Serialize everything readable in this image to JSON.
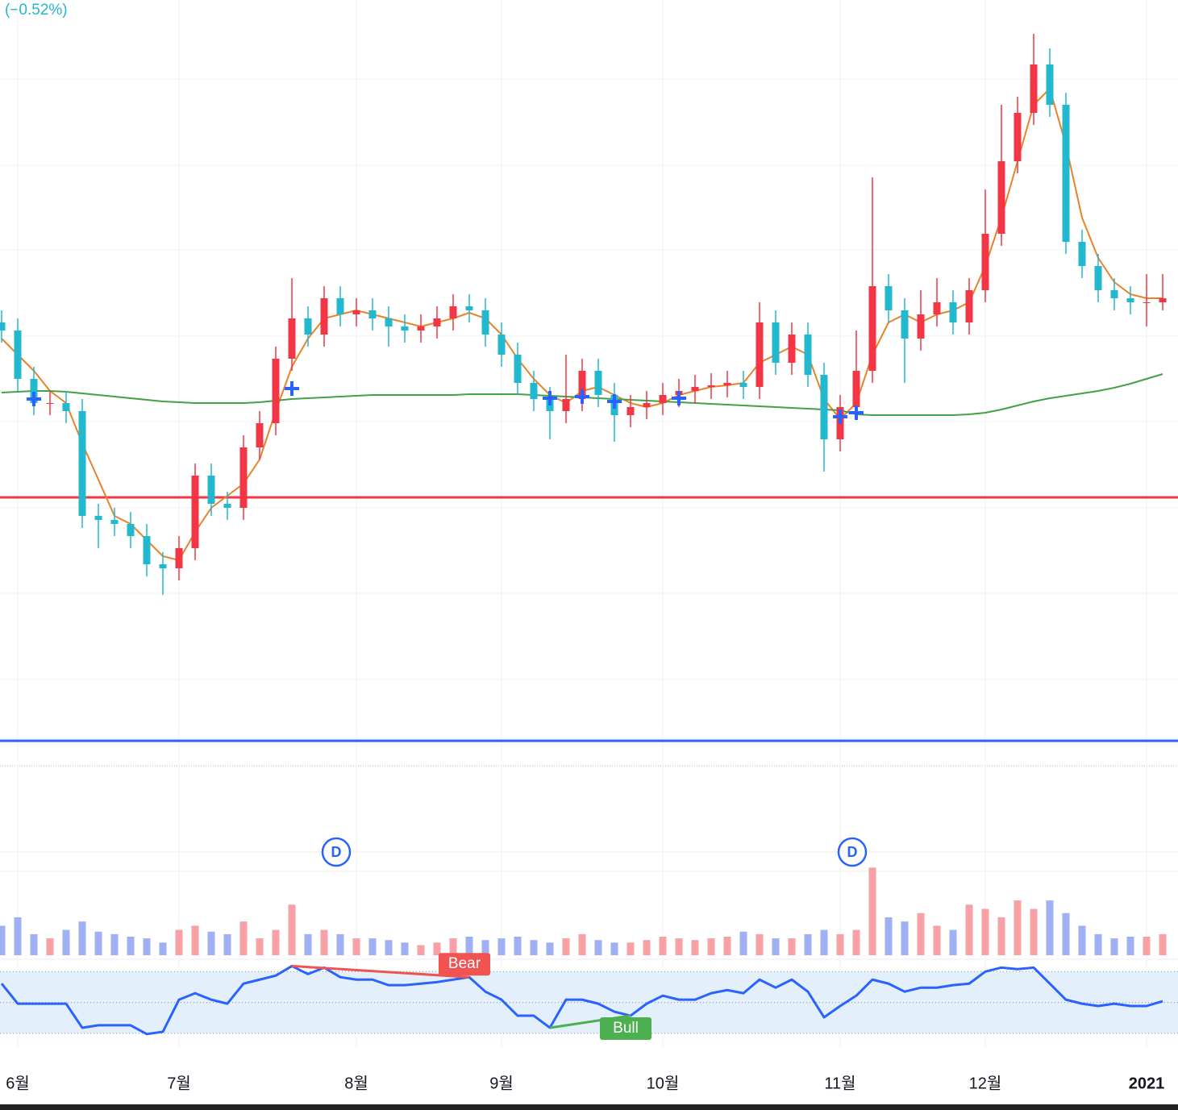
{
  "chart_data": {
    "type": "candlestick",
    "change_label": "(−0.52%)",
    "categories": [
      null,
      "6월",
      null,
      null,
      null,
      null,
      null,
      null,
      null,
      null,
      null,
      "7월",
      null,
      null,
      null,
      null,
      null,
      null,
      null,
      null,
      null,
      null,
      "8월",
      null,
      null,
      null,
      null,
      null,
      null,
      null,
      null,
      "9월",
      null,
      null,
      null,
      null,
      null,
      null,
      null,
      null,
      null,
      "10월",
      null,
      null,
      null,
      null,
      null,
      null,
      null,
      null,
      null,
      null,
      "11월",
      null,
      null,
      null,
      null,
      null,
      null,
      null,
      null,
      "12월",
      null,
      null,
      null,
      null,
      null,
      null,
      null,
      null,
      null,
      "2021",
      null
    ],
    "open": [
      52,
      51,
      45,
      42,
      42,
      41,
      28,
      27.5,
      27,
      25.5,
      22,
      21.5,
      24,
      33,
      29.5,
      29,
      36.5,
      39.5,
      47.5,
      52.5,
      50.5,
      55,
      53,
      53.5,
      52.5,
      51.5,
      51,
      51.5,
      52.5,
      54,
      53.5,
      50.5,
      48,
      44.5,
      42.5,
      41,
      42.5,
      46,
      43,
      40.5,
      41.5,
      42,
      43,
      43.5,
      44,
      44.2,
      44.5,
      44,
      52,
      47,
      50.5,
      45.5,
      37.5,
      41.5,
      46,
      56.5,
      53.5,
      50,
      53,
      54.5,
      52,
      56,
      63,
      72,
      78,
      84,
      79,
      62,
      59,
      56,
      55,
      54.5,
      54.5
    ],
    "high": [
      53.5,
      52.5,
      46.5,
      43.5,
      43.5,
      42.5,
      29.5,
      29,
      28.5,
      27,
      23.5,
      25.5,
      34.5,
      34.5,
      31,
      38,
      41,
      49,
      57.5,
      54,
      56.5,
      56.5,
      55,
      55,
      54,
      53,
      53,
      54,
      55.5,
      55.5,
      55,
      52,
      49.5,
      46,
      44,
      48,
      47.5,
      47.5,
      44.5,
      43,
      43.5,
      44.5,
      45,
      45.5,
      45.7,
      46,
      46,
      54.5,
      53.5,
      52,
      52,
      47,
      43,
      51,
      70,
      58,
      55,
      56,
      57.5,
      56,
      57.5,
      68.5,
      79,
      80,
      87.8,
      86,
      80.5,
      63.5,
      60.5,
      57.5,
      56.5,
      58,
      58
    ],
    "low": [
      49.5,
      43.5,
      40.5,
      40.5,
      39.5,
      26.5,
      24,
      25.5,
      24,
      20.5,
      18.2,
      20,
      22.5,
      28,
      27.5,
      27.5,
      35,
      38,
      46,
      49,
      49,
      51.5,
      51.5,
      51,
      49,
      49.5,
      49.5,
      50,
      51,
      52,
      49,
      46.5,
      43,
      41,
      37.5,
      39.5,
      41,
      41.5,
      37.2,
      39,
      40,
      40.5,
      41.5,
      42,
      42.5,
      42.7,
      42.5,
      42.5,
      45.5,
      45.5,
      44,
      33.5,
      36,
      40,
      44.5,
      52,
      44.5,
      48.5,
      51.5,
      50.5,
      50.5,
      54.5,
      61.5,
      70.5,
      76.5,
      77.5,
      60.5,
      57.5,
      54.5,
      53.5,
      53,
      51.5,
      53.5
    ],
    "close": [
      51,
      45,
      42,
      42,
      41,
      28,
      27.5,
      27,
      25.5,
      22,
      21.5,
      24,
      33,
      29.5,
      29,
      36.5,
      39.5,
      47.5,
      52.5,
      50.5,
      55,
      53,
      53.5,
      52.5,
      51.5,
      51,
      51.5,
      52.5,
      54,
      53.5,
      50.5,
      48,
      44.5,
      42.5,
      41,
      42.5,
      46,
      43,
      40.5,
      41.5,
      42,
      43,
      43.5,
      44,
      44.2,
      44.5,
      44,
      52,
      47,
      50.5,
      45.5,
      37.5,
      41.5,
      46,
      56.5,
      53.5,
      50,
      53,
      54.5,
      52,
      56,
      63,
      72,
      78,
      84,
      79,
      62,
      59,
      56,
      55,
      54.5,
      54.5,
      55
    ],
    "up_color": "#f23645",
    "down_color": "#22b8cf",
    "ylim": [
      -13,
      92
    ],
    "ygrid": [
      82.2,
      71.5,
      61,
      50.3,
      39.7,
      29,
      18.4,
      7.7
    ],
    "ma_lines": [
      {
        "color": "#e8832a",
        "values": [
          50,
          48,
          46,
          43.5,
          42,
          37,
          32.5,
          28,
          27,
          25,
          23,
          22.5,
          26,
          29,
          30.5,
          32,
          35,
          41,
          46.5,
          50,
          52.5,
          53,
          53.5,
          53,
          52.5,
          52,
          51.5,
          52,
          52.5,
          53.2,
          52.5,
          50.5,
          47.5,
          45,
          43,
          42,
          43.5,
          44,
          43,
          42,
          41.5,
          42,
          43,
          43.5,
          44,
          44.2,
          44.5,
          47,
          48,
          49,
          48,
          42.5,
          40,
          42,
          48,
          52,
          53,
          52,
          53,
          53.5,
          54.5,
          59,
          65,
          72,
          79,
          81,
          74,
          65,
          60,
          57,
          55.5,
          55,
          55
        ]
      },
      {
        "color": "#43a047",
        "values": [
          43.3,
          43.4,
          43.5,
          43.5,
          43.4,
          43.2,
          43,
          42.8,
          42.6,
          42.4,
          42.2,
          42.1,
          42,
          42,
          42,
          42,
          42.1,
          42.3,
          42.5,
          42.6,
          42.7,
          42.8,
          42.9,
          43,
          43,
          43,
          43,
          43,
          43,
          43.1,
          43.1,
          43.1,
          43.1,
          43,
          42.9,
          42.8,
          42.7,
          42.6,
          42.5,
          42.4,
          42.3,
          42.2,
          42.1,
          42,
          41.9,
          41.8,
          41.7,
          41.6,
          41.5,
          41.4,
          41.3,
          41.2,
          41.1,
          40.6,
          40.5,
          40.5,
          40.5,
          40.5,
          40.5,
          40.5,
          40.6,
          40.8,
          41.2,
          41.7,
          42.2,
          42.6,
          42.9,
          43.2,
          43.5,
          43.9,
          44.4,
          45,
          45.6
        ]
      }
    ],
    "hlines": [
      {
        "value": 30.3,
        "color": "#f23645"
      },
      {
        "value": 0.1,
        "color": "#2962ff"
      }
    ],
    "cross_markers": {
      "color": "#2962ff",
      "values": [
        null,
        null,
        42.5,
        null,
        null,
        null,
        null,
        null,
        null,
        null,
        null,
        null,
        null,
        null,
        null,
        null,
        null,
        null,
        43.8,
        null,
        null,
        null,
        null,
        null,
        null,
        null,
        null,
        null,
        null,
        null,
        null,
        null,
        null,
        null,
        42.6,
        null,
        42.8,
        null,
        42.2,
        null,
        null,
        null,
        42.6,
        null,
        null,
        null,
        null,
        null,
        null,
        null,
        null,
        null,
        40.3,
        40.8,
        null,
        null,
        null,
        null,
        null,
        null,
        null,
        null,
        null,
        null,
        null,
        null,
        null,
        null,
        null,
        null,
        null,
        null,
        null
      ]
    },
    "events": {
      "label": "D",
      "color": "#2962ff",
      "index": [
        21,
        53
      ]
    },
    "volume": {
      "up_color": "#f7a0a6",
      "down_color": "#9fb0f4",
      "ylim": [
        0,
        110
      ],
      "values": [
        35,
        45,
        25,
        20,
        30,
        40,
        28,
        25,
        22,
        20,
        15,
        30,
        35,
        28,
        25,
        40,
        20,
        30,
        60,
        25,
        30,
        25,
        20,
        20,
        18,
        15,
        12,
        15,
        20,
        22,
        18,
        20,
        22,
        18,
        15,
        20,
        25,
        18,
        15,
        15,
        18,
        22,
        20,
        18,
        20,
        22,
        28,
        25,
        20,
        20,
        25,
        30,
        25,
        30,
        104,
        45,
        40,
        50,
        35,
        30,
        60,
        55,
        45,
        65,
        55,
        65,
        50,
        35,
        25,
        20,
        22,
        22,
        25
      ]
    },
    "rsi": {
      "color": "#2962ff",
      "band_color": "#e3f0fc",
      "levels": [
        70,
        50,
        30
      ],
      "ylim": [
        20,
        78
      ],
      "values": [
        62.2,
        49.2,
        49.2,
        49.2,
        49.2,
        33.6,
        35.2,
        35.2,
        35.2,
        29.5,
        31,
        51.8,
        56,
        51.8,
        49.2,
        62.2,
        64.8,
        67.4,
        73.6,
        68.4,
        72.6,
        66.4,
        64.8,
        64.8,
        61.2,
        61.2,
        62.2,
        63.2,
        64.8,
        66.4,
        57,
        51.8,
        41.4,
        41.4,
        33.6,
        51.8,
        51.8,
        49.2,
        44,
        41.4,
        49.2,
        54.4,
        51.8,
        51.8,
        56,
        58,
        56,
        64.8,
        59.6,
        64.8,
        57,
        40.4,
        47.7,
        54.4,
        64.8,
        62.2,
        57,
        59.6,
        59.6,
        61.2,
        62.2,
        70,
        72.6,
        71.6,
        72.6,
        62.2,
        51.8,
        49.2,
        47.7,
        49.2,
        47.7,
        47.7,
        50.8
      ],
      "divergences": [
        {
          "label": "Bear",
          "color": "#f05350",
          "index": [
            18,
            29
          ],
          "values": [
            73.6,
            66.4
          ]
        },
        {
          "label": "Bull",
          "color": "#4caf50",
          "index": [
            34,
            39
          ],
          "values": [
            33.6,
            41.4
          ]
        }
      ]
    }
  }
}
